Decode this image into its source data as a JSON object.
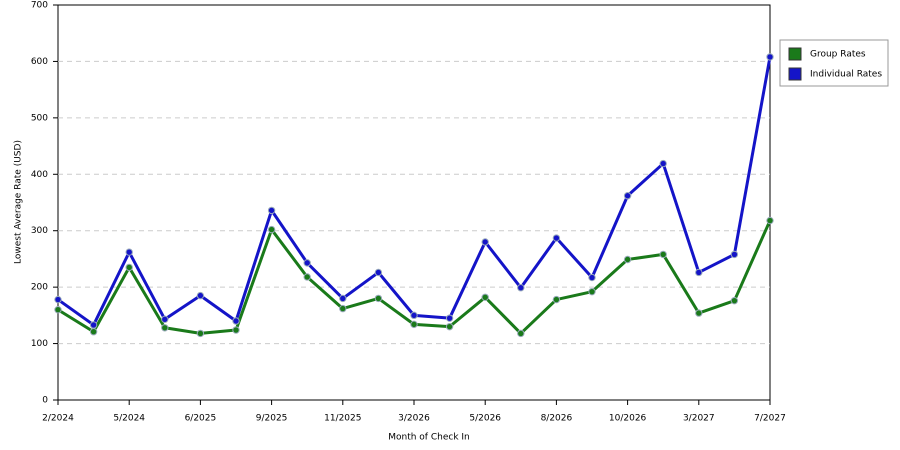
{
  "chart_data": {
    "type": "line",
    "x_label": "Month of Check In",
    "y_label": "Lowest Average Rate (USD)",
    "categories": [
      "2/2024",
      null,
      "5/2024",
      null,
      "6/2025",
      null,
      "9/2025",
      null,
      "11/2025",
      null,
      "3/2026",
      null,
      "5/2026",
      null,
      "8/2026",
      null,
      "10/2026",
      null,
      "3/2027",
      null,
      "7/2027"
    ],
    "series": [
      {
        "name": "Group Rates",
        "color": "#1a7a1a",
        "values": [
          160,
          121,
          235,
          128,
          118,
          124,
          302,
          218,
          162,
          180,
          134,
          130,
          182,
          118,
          178,
          192,
          249,
          258,
          154,
          176,
          318
        ]
      },
      {
        "name": "Individual Rates",
        "color": "#1414c8",
        "values": [
          178,
          133,
          262,
          143,
          185,
          140,
          336,
          243,
          180,
          226,
          150,
          145,
          280,
          199,
          287,
          217,
          362,
          419,
          226,
          258,
          608
        ]
      }
    ],
    "ylim": [
      0,
      700
    ],
    "yticks": [
      0,
      100,
      200,
      300,
      400,
      500,
      600,
      700
    ],
    "grid": true,
    "legend": "right"
  }
}
